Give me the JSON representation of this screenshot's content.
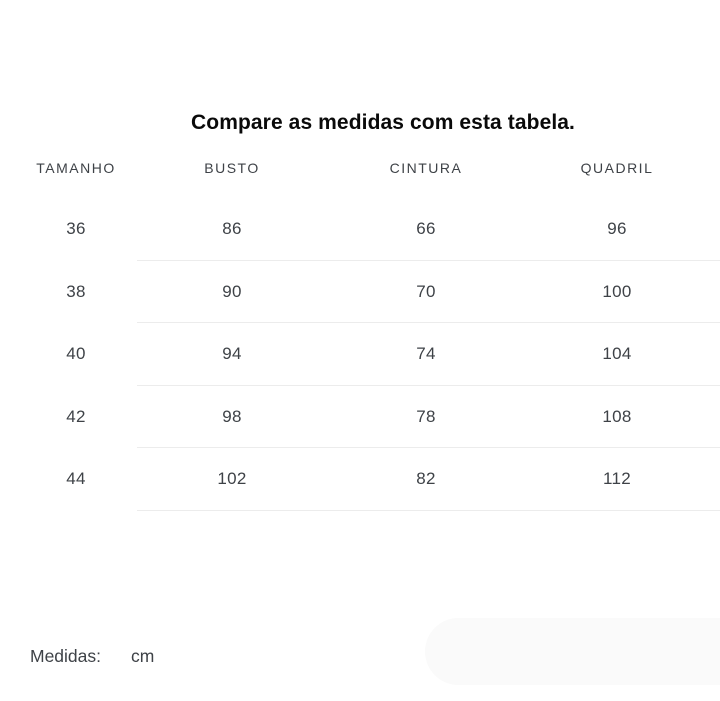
{
  "chart_data": {
    "type": "table",
    "title": "Compare as medidas com esta tabela.",
    "columns": [
      "TAMANHO",
      "BUSTO",
      "CINTURA",
      "QUADRIL"
    ],
    "rows": [
      [
        "36",
        "86",
        "66",
        "96"
      ],
      [
        "38",
        "90",
        "70",
        "100"
      ],
      [
        "40",
        "94",
        "74",
        "104"
      ],
      [
        "42",
        "98",
        "78",
        "108"
      ],
      [
        "44",
        "102",
        "82",
        "112"
      ]
    ],
    "measure_label": "Medidas:",
    "unit": "cm"
  },
  "colors": {
    "title": "#0a0a0a",
    "text": "#3e4247",
    "divider": "#ececec",
    "pill": "#fafafa",
    "background": "#ffffff"
  }
}
